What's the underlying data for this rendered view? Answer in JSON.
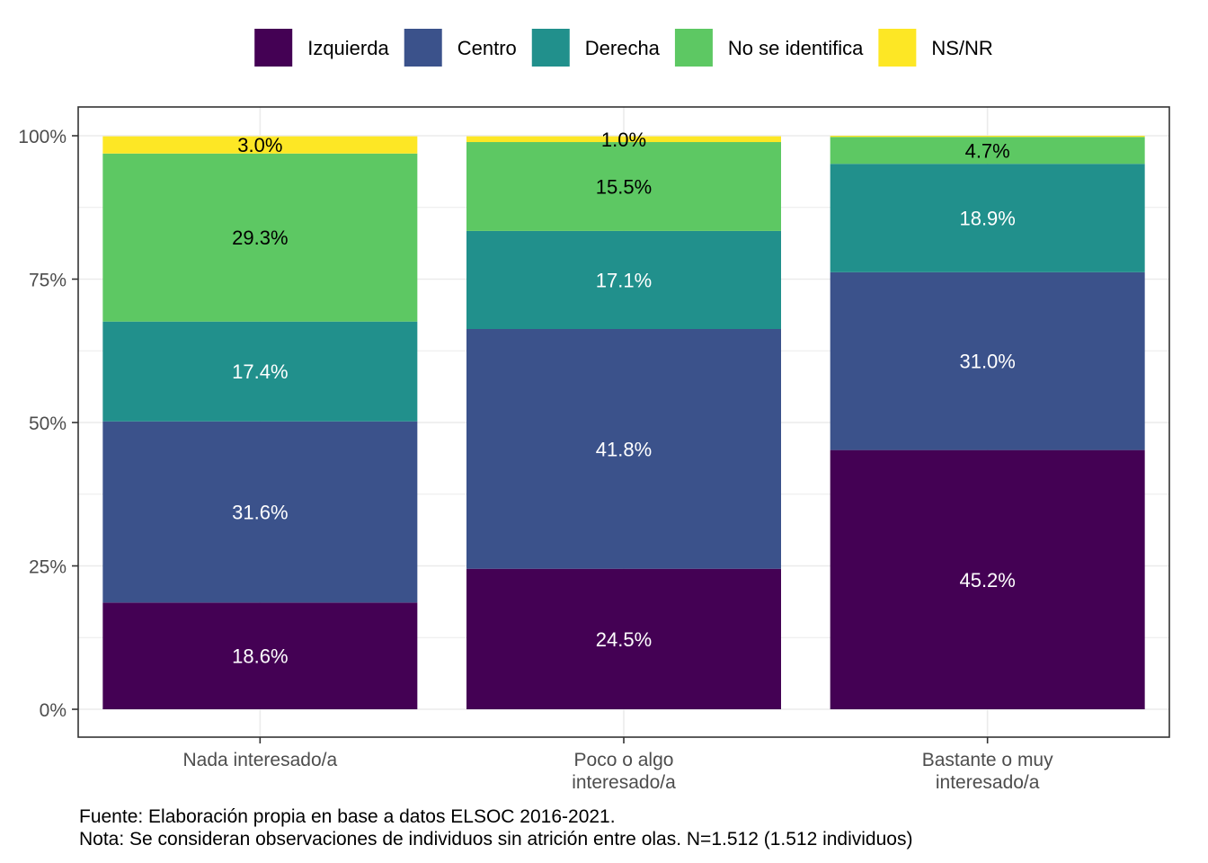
{
  "chart_data": {
    "type": "bar",
    "stacked": true,
    "categories": [
      [
        "Nada interesado/a"
      ],
      [
        "Poco o algo",
        "interesado/a"
      ],
      [
        "Bastante o muy",
        "interesado/a"
      ]
    ],
    "series": [
      {
        "name": "Izquierda",
        "color": "#440154",
        "values": [
          18.6,
          24.5,
          45.2
        ],
        "labels": [
          "18.6%",
          "24.5%",
          "45.2%"
        ],
        "label_color": "#ffffff"
      },
      {
        "name": "Centro",
        "color": "#3B528B",
        "values": [
          31.6,
          41.8,
          31.0
        ],
        "labels": [
          "31.6%",
          "41.8%",
          "31.0%"
        ],
        "label_color": "#ffffff"
      },
      {
        "name": "Derecha",
        "color": "#21908C",
        "values": [
          17.4,
          17.1,
          18.9
        ],
        "labels": [
          "17.4%",
          "17.1%",
          "18.9%"
        ],
        "label_color": "#ffffff"
      },
      {
        "name": "No se identifica",
        "color": "#5DC863",
        "values": [
          29.3,
          15.5,
          4.7
        ],
        "labels": [
          "29.3%",
          "15.5%",
          "4.7%"
        ],
        "label_color": "#000000"
      },
      {
        "name": "NS/NR",
        "color": "#FDE725",
        "values": [
          3.0,
          1.0,
          0.2
        ],
        "labels": [
          "3.0%",
          "1.0%",
          ""
        ],
        "label_color": "#000000"
      }
    ],
    "y_ticks": [
      0,
      25,
      50,
      75,
      100
    ],
    "y_tick_labels": [
      "0%",
      "25%",
      "50%",
      "75%",
      "100%"
    ],
    "ylim": [
      0,
      100
    ],
    "legend_position": "top",
    "grid": true
  },
  "caption": {
    "line1": "Fuente: Elaboración propia en base a datos ELSOC 2016-2021.",
    "line2": "Nota: Se consideran observaciones de individuos sin atrición entre olas. N=1.512 (1.512 individuos)"
  }
}
